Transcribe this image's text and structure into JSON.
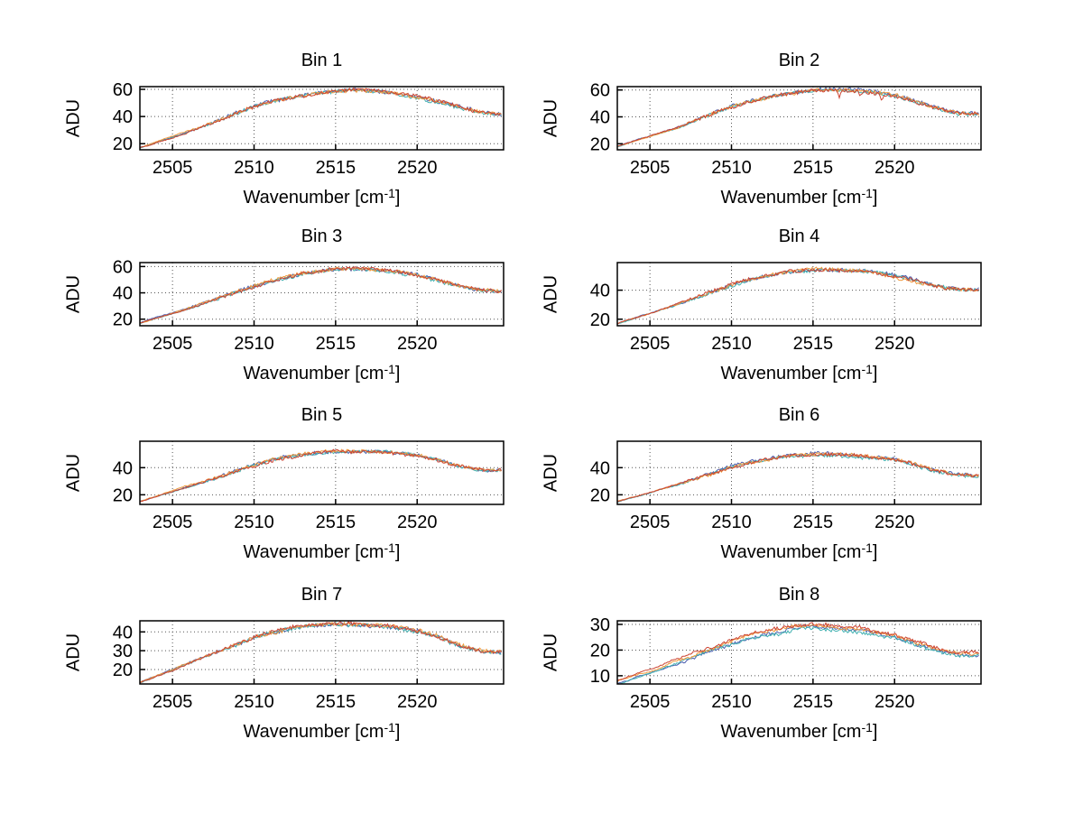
{
  "figure": {
    "background": "#ffffff",
    "axis_color": "#000000",
    "text_color": "#000000",
    "grid": "on",
    "grid_style": "dotted",
    "layout": "4x2-subplots"
  },
  "shared": {
    "ylabel": "ADU",
    "xlabel_text": "Wavenumber [cm⁻¹]",
    "xlabel_base": "Wavenumber [cm",
    "xlabel_sup": "-1",
    "xlabel_close": "]",
    "x_ticks": [
      2505,
      2510,
      2515,
      2520
    ],
    "x_range": [
      2503,
      2525.3
    ],
    "series": [
      {
        "name": "spectrum-blue",
        "color": "#4a5fb0"
      },
      {
        "name": "spectrum-teal",
        "color": "#3fb0b0"
      },
      {
        "name": "spectrum-orange",
        "color": "#f09a3c"
      },
      {
        "name": "spectrum-red",
        "color": "#cc4433"
      }
    ]
  },
  "chart_data": [
    {
      "type": "line",
      "title": "Bin 1",
      "xlabel": "Wavenumber [cm⁻¹]",
      "ylabel": "ADU",
      "y_ticks": [
        20,
        40,
        60
      ],
      "ylim": [
        15.5,
        62
      ],
      "noise": 1.3,
      "series_offsets": [
        0.2,
        -0.2,
        0.15,
        0
      ],
      "profile": [
        [
          2503,
          17
        ],
        [
          2504,
          21
        ],
        [
          2505,
          25
        ],
        [
          2506,
          29
        ],
        [
          2507,
          33.5
        ],
        [
          2508,
          38
        ],
        [
          2509,
          43
        ],
        [
          2510,
          47.5
        ],
        [
          2511,
          51
        ],
        [
          2512,
          53.5
        ],
        [
          2513,
          55.5
        ],
        [
          2514,
          57.5
        ],
        [
          2515,
          58.8
        ],
        [
          2516,
          59.3
        ],
        [
          2517,
          59
        ],
        [
          2518,
          58
        ],
        [
          2519,
          56.5
        ],
        [
          2520,
          54.5
        ],
        [
          2521,
          52
        ],
        [
          2522,
          49
        ],
        [
          2523,
          45.5
        ],
        [
          2524,
          42.5
        ],
        [
          2525.2,
          41.5
        ]
      ]
    },
    {
      "type": "line",
      "title": "Bin 2",
      "xlabel": "Wavenumber [cm⁻¹]",
      "ylabel": "ADU",
      "y_ticks": [
        20,
        40,
        60
      ],
      "ylim": [
        15.5,
        62.5
      ],
      "noise": 1.3,
      "series_offsets": [
        0.2,
        -0.2,
        0.15,
        0
      ],
      "spikes": [
        {
          "x": 2516.6,
          "dy": -5.5
        },
        {
          "x": 2517.9,
          "dy": -3
        },
        {
          "x": 2519.2,
          "dy": -4
        }
      ],
      "profile": [
        [
          2503,
          18
        ],
        [
          2505,
          25.5
        ],
        [
          2507,
          34
        ],
        [
          2509,
          43
        ],
        [
          2510,
          47.5
        ],
        [
          2511,
          51
        ],
        [
          2512,
          54
        ],
        [
          2513,
          56.5
        ],
        [
          2514,
          58.5
        ],
        [
          2515,
          60
        ],
        [
          2516,
          60.5
        ],
        [
          2517,
          60
        ],
        [
          2518,
          59.5
        ],
        [
          2519,
          58
        ],
        [
          2520,
          56
        ],
        [
          2521,
          52.5
        ],
        [
          2522,
          48.5
        ],
        [
          2523,
          45
        ],
        [
          2524,
          42.5
        ],
        [
          2525.2,
          42
        ]
      ]
    },
    {
      "type": "line",
      "title": "Bin 3",
      "xlabel": "Wavenumber [cm⁻¹]",
      "ylabel": "ADU",
      "y_ticks": [
        20,
        40,
        60
      ],
      "ylim": [
        15,
        63
      ],
      "noise": 1.3,
      "series_offsets": [
        0.2,
        -0.2,
        0.15,
        0
      ],
      "profile": [
        [
          2503,
          17
        ],
        [
          2505,
          24.5
        ],
        [
          2507,
          32.5
        ],
        [
          2509,
          41
        ],
        [
          2510,
          45
        ],
        [
          2511,
          48.5
        ],
        [
          2512,
          51.5
        ],
        [
          2513,
          54.5
        ],
        [
          2514,
          56.5
        ],
        [
          2515,
          58
        ],
        [
          2516,
          58
        ],
        [
          2517,
          57.5
        ],
        [
          2518,
          56.5
        ],
        [
          2519,
          55
        ],
        [
          2520,
          53
        ],
        [
          2521,
          50
        ],
        [
          2522,
          47
        ],
        [
          2523,
          44
        ],
        [
          2524,
          41.5
        ],
        [
          2525.2,
          41
        ]
      ]
    },
    {
      "type": "line",
      "title": "Bin 4",
      "xlabel": "Wavenumber [cm⁻¹]",
      "ylabel": "ADU",
      "y_ticks": [
        20,
        40
      ],
      "ylim": [
        15.5,
        59
      ],
      "noise": 1.2,
      "series_offsets": [
        0.2,
        -0.2,
        0.15,
        0
      ],
      "profile": [
        [
          2503,
          17
        ],
        [
          2505,
          24
        ],
        [
          2507,
          31.5
        ],
        [
          2509,
          39.5
        ],
        [
          2510,
          43.5
        ],
        [
          2511,
          47
        ],
        [
          2512,
          49.5
        ],
        [
          2513,
          51.5
        ],
        [
          2514,
          53
        ],
        [
          2515,
          53.8
        ],
        [
          2516,
          53.8
        ],
        [
          2517,
          53.5
        ],
        [
          2518,
          53
        ],
        [
          2519,
          51.5
        ],
        [
          2520,
          49.5
        ],
        [
          2521,
          47
        ],
        [
          2522,
          44
        ],
        [
          2523,
          41.5
        ],
        [
          2524,
          40.2
        ],
        [
          2525.2,
          40
        ]
      ]
    },
    {
      "type": "line",
      "title": "Bin 5",
      "xlabel": "Wavenumber [cm⁻¹]",
      "ylabel": "ADU",
      "y_ticks": [
        20,
        40
      ],
      "ylim": [
        12.9,
        59.5
      ],
      "noise": 1.2,
      "series_offsets": [
        0.2,
        -0.2,
        0.15,
        0
      ],
      "profile": [
        [
          2503,
          15
        ],
        [
          2505,
          22.5
        ],
        [
          2507,
          30
        ],
        [
          2509,
          38
        ],
        [
          2510,
          42
        ],
        [
          2511,
          45.5
        ],
        [
          2512,
          48
        ],
        [
          2513,
          50
        ],
        [
          2514,
          51.5
        ],
        [
          2515,
          52.3
        ],
        [
          2516,
          52
        ],
        [
          2517,
          51.8
        ],
        [
          2518,
          51.5
        ],
        [
          2519,
          50.5
        ],
        [
          2520,
          49
        ],
        [
          2521,
          46.5
        ],
        [
          2522,
          43
        ],
        [
          2523,
          40
        ],
        [
          2524,
          38.2
        ],
        [
          2525.2,
          38
        ]
      ]
    },
    {
      "type": "line",
      "title": "Bin 6",
      "xlabel": "Wavenumber [cm⁻¹]",
      "ylabel": "ADU",
      "y_ticks": [
        20,
        40
      ],
      "ylim": [
        12.9,
        59.5
      ],
      "noise": 1.2,
      "series_offsets": [
        0.2,
        -0.2,
        0.15,
        0
      ],
      "profile": [
        [
          2503,
          15
        ],
        [
          2505,
          21.5
        ],
        [
          2507,
          28.5
        ],
        [
          2509,
          36.5
        ],
        [
          2510,
          40.5
        ],
        [
          2511,
          43.5
        ],
        [
          2512,
          46
        ],
        [
          2513,
          48
        ],
        [
          2514,
          49
        ],
        [
          2515,
          49.8
        ],
        [
          2516,
          49.8
        ],
        [
          2517,
          49.5
        ],
        [
          2518,
          48.5
        ],
        [
          2519,
          47.5
        ],
        [
          2520,
          46
        ],
        [
          2521,
          43.5
        ],
        [
          2522,
          39.5
        ],
        [
          2523,
          36.5
        ],
        [
          2524,
          34.5
        ],
        [
          2525.2,
          34
        ]
      ]
    },
    {
      "type": "line",
      "title": "Bin 7",
      "xlabel": "Wavenumber [cm⁻¹]",
      "ylabel": "ADU",
      "y_ticks": [
        20,
        30,
        40
      ],
      "ylim": [
        12.3,
        45.9
      ],
      "noise": 1.0,
      "series_offsets": [
        0.2,
        -0.2,
        0.15,
        0
      ],
      "profile": [
        [
          2503,
          13
        ],
        [
          2505,
          19.5
        ],
        [
          2507,
          26.5
        ],
        [
          2509,
          33.5
        ],
        [
          2510,
          37
        ],
        [
          2511,
          39.5
        ],
        [
          2512,
          41.5
        ],
        [
          2513,
          43
        ],
        [
          2514,
          43.8
        ],
        [
          2515,
          44.2
        ],
        [
          2516,
          43.8
        ],
        [
          2517,
          43.5
        ],
        [
          2518,
          43
        ],
        [
          2519,
          42
        ],
        [
          2520,
          40.5
        ],
        [
          2521,
          38
        ],
        [
          2522,
          34.5
        ],
        [
          2523,
          31.5
        ],
        [
          2524,
          29.8
        ],
        [
          2525.2,
          29.5
        ]
      ]
    },
    {
      "type": "line",
      "title": "Bin 8",
      "xlabel": "Wavenumber [cm⁻¹]",
      "ylabel": "ADU",
      "y_ticks": [
        10,
        20,
        30
      ],
      "ylim": [
        6.8,
        31.4
      ],
      "noise": 0.6,
      "series_offsets": [
        -0.5,
        -0.9,
        0.3,
        0.6
      ],
      "profile": [
        [
          2503,
          7.5
        ],
        [
          2505,
          11.5
        ],
        [
          2507,
          16
        ],
        [
          2509,
          20.5
        ],
        [
          2510,
          23
        ],
        [
          2511,
          25
        ],
        [
          2512,
          26.5
        ],
        [
          2513,
          27.5
        ],
        [
          2514,
          28.8
        ],
        [
          2515,
          29.3
        ],
        [
          2516,
          28.8
        ],
        [
          2517,
          28.5
        ],
        [
          2518,
          28
        ],
        [
          2519,
          26.5
        ],
        [
          2520,
          25.5
        ],
        [
          2521,
          23.5
        ],
        [
          2522,
          21.5
        ],
        [
          2523,
          19.5
        ],
        [
          2524,
          18.5
        ],
        [
          2525.2,
          18.5
        ]
      ]
    }
  ]
}
